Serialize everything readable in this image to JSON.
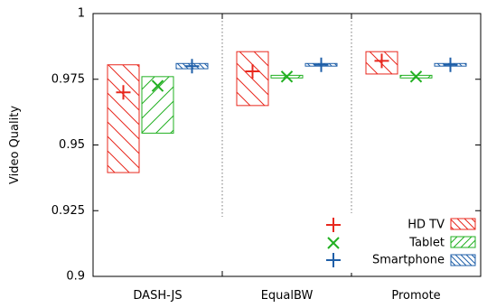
{
  "chart_data": {
    "type": "box",
    "ylabel": "Video Quality",
    "ylim": [
      0.9,
      1.0
    ],
    "yticks": [
      {
        "value": 0.9,
        "label": "0.9"
      },
      {
        "value": 0.925,
        "label": "0.925"
      },
      {
        "value": 0.95,
        "label": "0.95"
      },
      {
        "value": 0.975,
        "label": "0.975"
      },
      {
        "value": 1.0,
        "label": "1"
      }
    ],
    "categories": [
      "DASH-JS",
      "EqualBW",
      "Promote"
    ],
    "legend_position": "bottom-right",
    "series": [
      {
        "name": "HD TV",
        "color": "#e8281e",
        "marker": "plus",
        "hatch": "backslash",
        "boxes": [
          {
            "low": 0.9395,
            "high": 0.9805,
            "mean": 0.97
          },
          {
            "low": 0.965,
            "high": 0.9855,
            "mean": 0.978
          },
          {
            "low": 0.977,
            "high": 0.9855,
            "mean": 0.982
          }
        ]
      },
      {
        "name": "Tablet",
        "color": "#22b022",
        "marker": "cross",
        "hatch": "slash",
        "boxes": [
          {
            "low": 0.9545,
            "high": 0.976,
            "mean": 0.9725
          },
          {
            "low": 0.9755,
            "high": 0.9765,
            "mean": 0.976
          },
          {
            "low": 0.9755,
            "high": 0.9765,
            "mean": 0.976
          }
        ]
      },
      {
        "name": "Smartphone",
        "color": "#1f5fa8",
        "marker": "plus",
        "hatch": "backslash",
        "boxes": [
          {
            "low": 0.979,
            "high": 0.981,
            "mean": 0.98
          },
          {
            "low": 0.98,
            "high": 0.981,
            "mean": 0.9805
          },
          {
            "low": 0.98,
            "high": 0.981,
            "mean": 0.9805
          }
        ]
      }
    ]
  }
}
